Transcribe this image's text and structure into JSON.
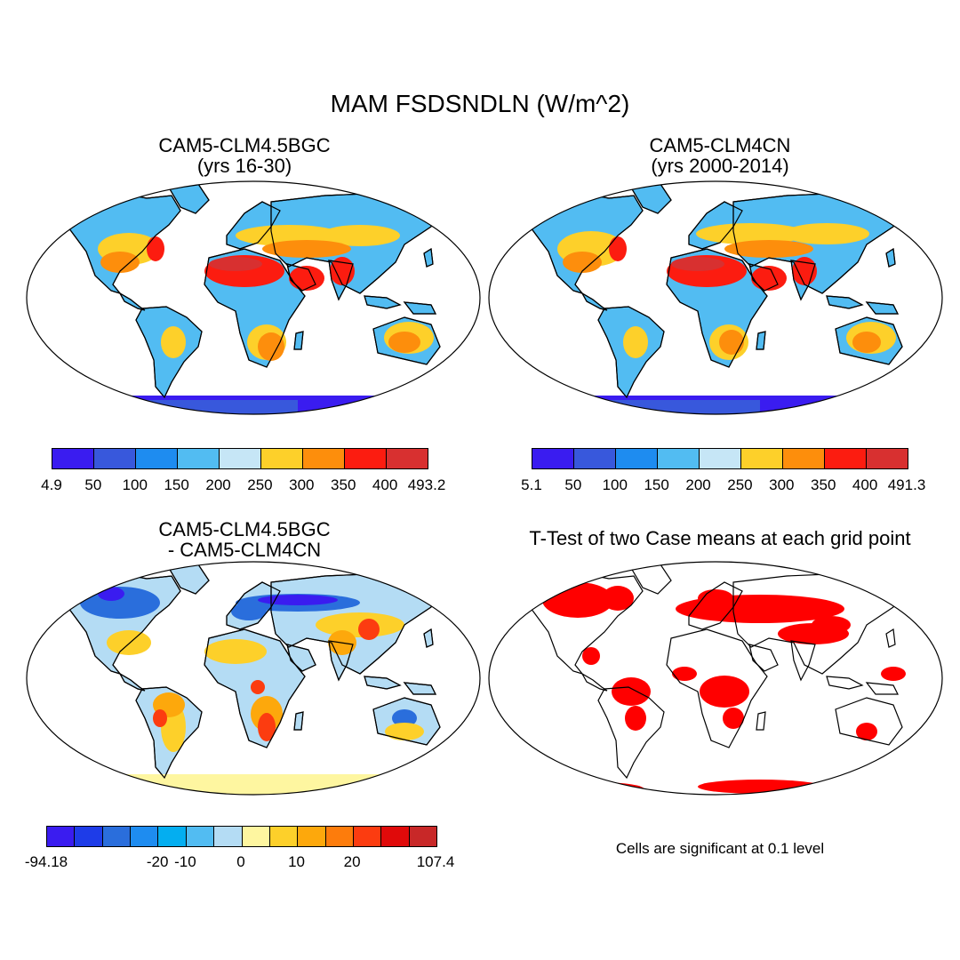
{
  "title": "MAM FSDSNDLN (W/m^2)",
  "panels": [
    {
      "title_line1": "CAM5-CLM4.5BGC",
      "title_line2": "(yrs 16-30)"
    },
    {
      "title_line1": "CAM5-CLM4CN",
      "title_line2": "(yrs 2000-2014)"
    },
    {
      "title_line1": "CAM5-CLM4.5BGC",
      "title_line2": "- CAM5-CLM4CN"
    },
    {
      "title_line1": "T-Test of two Case means at each grid point"
    }
  ],
  "colorbars": {
    "case1": {
      "colors": [
        "#3a1cf0",
        "#3858dc",
        "#1e8cf0",
        "#52bcf2",
        "#c6e6f6",
        "#fdd02a",
        "#fd8e0c",
        "#fc1c10",
        "#d83030"
      ],
      "labels": [
        "4.9",
        "50",
        "100",
        "150",
        "200",
        "250",
        "300",
        "350",
        "400",
        "493.2"
      ]
    },
    "case2": {
      "colors": [
        "#3a1cf0",
        "#3858dc",
        "#1e8cf0",
        "#52bcf2",
        "#c6e6f6",
        "#fdd02a",
        "#fd8e0c",
        "#fc1c10",
        "#d83030"
      ],
      "labels": [
        "5.1",
        "50",
        "100",
        "150",
        "200",
        "250",
        "300",
        "350",
        "400",
        "491.3"
      ]
    },
    "diff": {
      "colors": [
        "#3a1cf0",
        "#1e3ce8",
        "#2a6edc",
        "#1e8cf0",
        "#04aef0",
        "#52bcf2",
        "#b4dcf4",
        "#fef6a0",
        "#fdd02a",
        "#fda80c",
        "#fd7c0c",
        "#fc3c10",
        "#e00a0a",
        "#c82828"
      ],
      "labels": [
        "-94.18",
        "-20",
        "-10",
        "0",
        "10",
        "20",
        "107.4"
      ]
    }
  },
  "significance_note": "Cells are significant at 0.1 level",
  "significance_color": "#ff0000"
}
